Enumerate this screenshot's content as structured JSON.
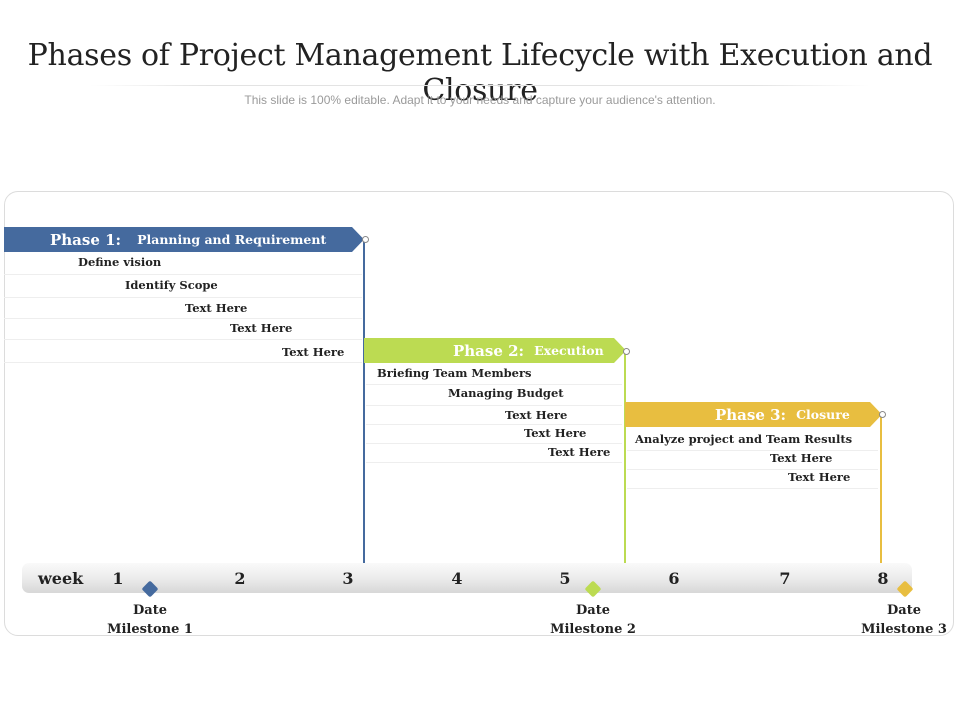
{
  "title": "Phases of Project Management Lifecycle with Execution and Closure",
  "subtitle": "This slide is 100% editable. Adapt it to your needs and capture your audience's attention.",
  "colors": {
    "phase1": "#456a9e",
    "phase2": "#bcdb52",
    "phase3": "#e8be40"
  },
  "phases": [
    {
      "label": "Phase 1:",
      "name": "Planning and Requirement",
      "items": [
        "Define vision",
        "Identify Scope",
        "Text Here",
        "Text Here",
        "Text Here"
      ]
    },
    {
      "label": "Phase 2:",
      "name": "Execution",
      "items": [
        "Briefing Team Members",
        "Managing Budget",
        "Text Here",
        "Text Here",
        "Text Here"
      ]
    },
    {
      "label": "Phase 3:",
      "name": "Closure",
      "items": [
        "Analyze project and Team Results",
        "Text Here",
        "Text Here"
      ]
    }
  ],
  "timeline": {
    "label": "week",
    "weeks": [
      "1",
      "2",
      "3",
      "4",
      "5",
      "6",
      "7",
      "8"
    ]
  },
  "milestones": [
    {
      "line1": "Date",
      "line2": "Milestone 1"
    },
    {
      "line1": "Date",
      "line2": "Milestone 2"
    },
    {
      "line1": "Date",
      "line2": "Milestone 3"
    }
  ]
}
